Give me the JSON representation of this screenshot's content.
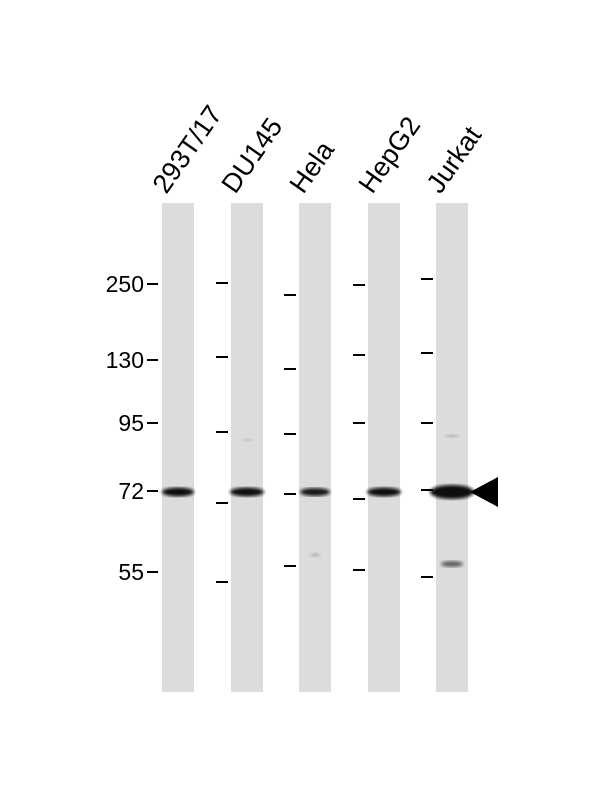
{
  "lanes": [
    {
      "label": "293T/17"
    },
    {
      "label": "DU145"
    },
    {
      "label": "Hela"
    },
    {
      "label": "HepG2"
    },
    {
      "label": "Jurkat"
    }
  ],
  "molecular_weight_markers": [
    "250",
    "130",
    "95",
    "72",
    "55"
  ],
  "colors": {
    "lane_background": "#dcdcdc",
    "band": "#111111",
    "arrow": "#000000"
  },
  "target_band_indicator": "arrow-left-icon"
}
